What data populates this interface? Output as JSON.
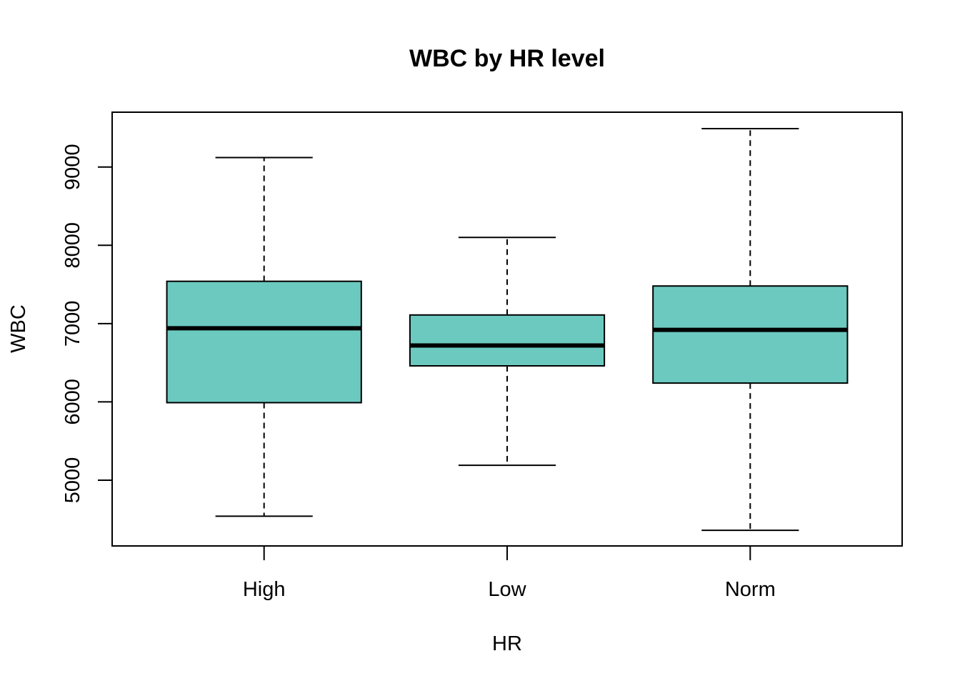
{
  "chart_data": {
    "type": "boxplot",
    "title": "WBC by HR level",
    "xlabel": "HR",
    "ylabel": "WBC",
    "categories": [
      "High",
      "Low",
      "Norm"
    ],
    "y_ticks": [
      5000,
      6000,
      7000,
      8000,
      9000
    ],
    "y_tick_labels": [
      "5000",
      "6000",
      "7000",
      "8000",
      "9000"
    ],
    "ylim": [
      4160,
      9700
    ],
    "grid": false,
    "legend": "none",
    "box_color": "#6cc9c0",
    "line_color": "#000000",
    "boxes": [
      {
        "category": "High",
        "min": 4540,
        "q1": 5990,
        "median": 6940,
        "q3": 7540,
        "max": 9120
      },
      {
        "category": "Low",
        "min": 5190,
        "q1": 6460,
        "median": 6720,
        "q3": 7110,
        "max": 8100
      },
      {
        "category": "Norm",
        "min": 4360,
        "q1": 6240,
        "median": 6920,
        "q3": 7480,
        "max": 9490
      }
    ]
  }
}
